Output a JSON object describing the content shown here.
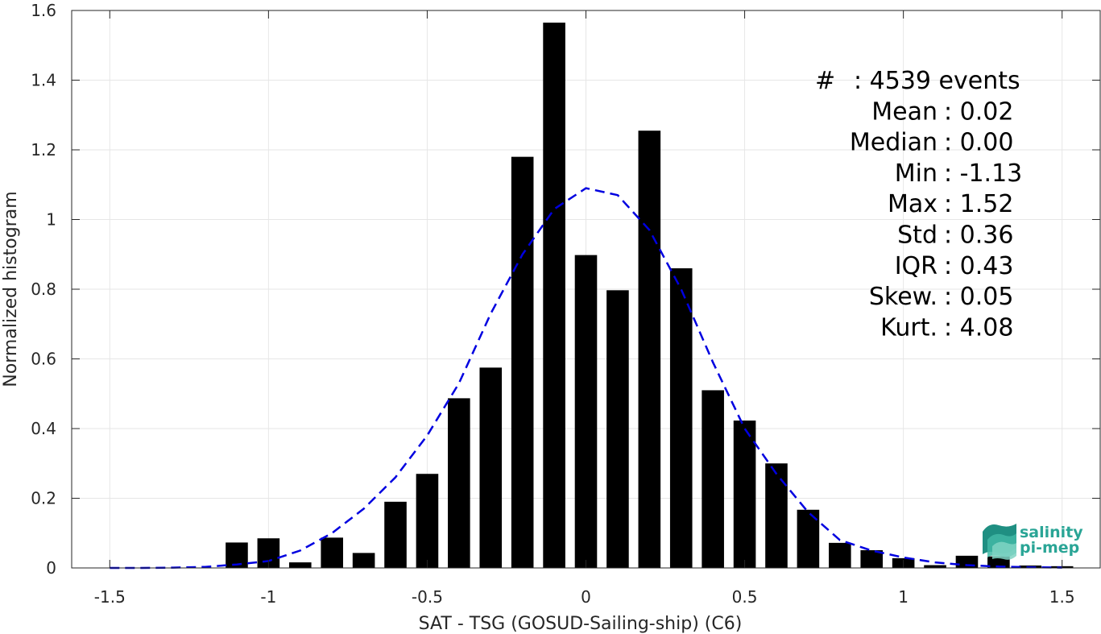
{
  "chart_data": {
    "type": "bar",
    "title": "",
    "xlabel": "SAT - TSG (GOSUD-Sailing-ship) (C6)",
    "ylabel": "Normalized histogram",
    "xlim": [
      -1.62,
      1.62
    ],
    "ylim": [
      0,
      1.6
    ],
    "xticks": [
      -1.5,
      -1,
      -0.5,
      0,
      0.5,
      1,
      1.5
    ],
    "xtick_labels": [
      "-1.5",
      "-1",
      "-0.5",
      "0",
      "0.5",
      "1",
      "1.5"
    ],
    "yticks": [
      0,
      0.2,
      0.4,
      0.6,
      0.8,
      1,
      1.2,
      1.4,
      1.6
    ],
    "ytick_labels": [
      "0",
      "0.2",
      "0.4",
      "0.6",
      "0.8",
      "1",
      "1.2",
      "1.4",
      "1.6"
    ],
    "grid": true,
    "bar_width": 0.07,
    "bar_color": "#000000",
    "bars": {
      "x": [
        -1.1,
        -1.0,
        -0.9,
        -0.8,
        -0.7,
        -0.6,
        -0.5,
        -0.4,
        -0.3,
        -0.2,
        -0.1,
        0.0,
        0.1,
        0.2,
        0.3,
        0.4,
        0.5,
        0.6,
        0.7,
        0.8,
        0.9,
        1.0,
        1.1,
        1.2,
        1.3,
        1.4,
        1.5
      ],
      "values": [
        0.073,
        0.085,
        0.016,
        0.087,
        0.043,
        0.19,
        0.27,
        0.487,
        0.575,
        1.18,
        1.565,
        0.898,
        0.797,
        1.255,
        0.86,
        0.51,
        0.423,
        0.3,
        0.167,
        0.072,
        0.051,
        0.028,
        0.008,
        0.035,
        0.033,
        0.007,
        0.005
      ]
    },
    "fit_curve": {
      "style": "dashed",
      "color": "#0000e0",
      "x": [
        -1.5,
        -1.4,
        -1.3,
        -1.2,
        -1.1,
        -1.0,
        -0.9,
        -0.8,
        -0.7,
        -0.6,
        -0.5,
        -0.4,
        -0.3,
        -0.2,
        -0.1,
        0.0,
        0.1,
        0.2,
        0.3,
        0.4,
        0.5,
        0.6,
        0.7,
        0.8,
        0.9,
        1.0,
        1.1,
        1.2,
        1.3,
        1.4,
        1.5
      ],
      "y": [
        0.0,
        0.0,
        0.001,
        0.003,
        0.01,
        0.02,
        0.05,
        0.1,
        0.17,
        0.26,
        0.38,
        0.53,
        0.73,
        0.9,
        1.03,
        1.09,
        1.07,
        0.97,
        0.8,
        0.59,
        0.4,
        0.27,
        0.16,
        0.08,
        0.05,
        0.03,
        0.016,
        0.008,
        0.004,
        0.002,
        0.001
      ]
    }
  },
  "stats": [
    {
      "key": "#",
      "value": ": 4539 events"
    },
    {
      "key": "Mean",
      "value": ": 0.02"
    },
    {
      "key": "Median",
      "value": ": 0.00"
    },
    {
      "key": "Min",
      "value": ": -1.13"
    },
    {
      "key": "Max",
      "value": ": 1.52"
    },
    {
      "key": "Std",
      "value": ": 0.36"
    },
    {
      "key": "IQR",
      "value": ": 0.43"
    },
    {
      "key": "Skew.",
      "value": ": 0.05"
    },
    {
      "key": "Kurt.",
      "value": ": 4.08"
    }
  ],
  "logo": {
    "line1": "salinity",
    "line2": "pi-mep",
    "color": "#2aa596"
  }
}
